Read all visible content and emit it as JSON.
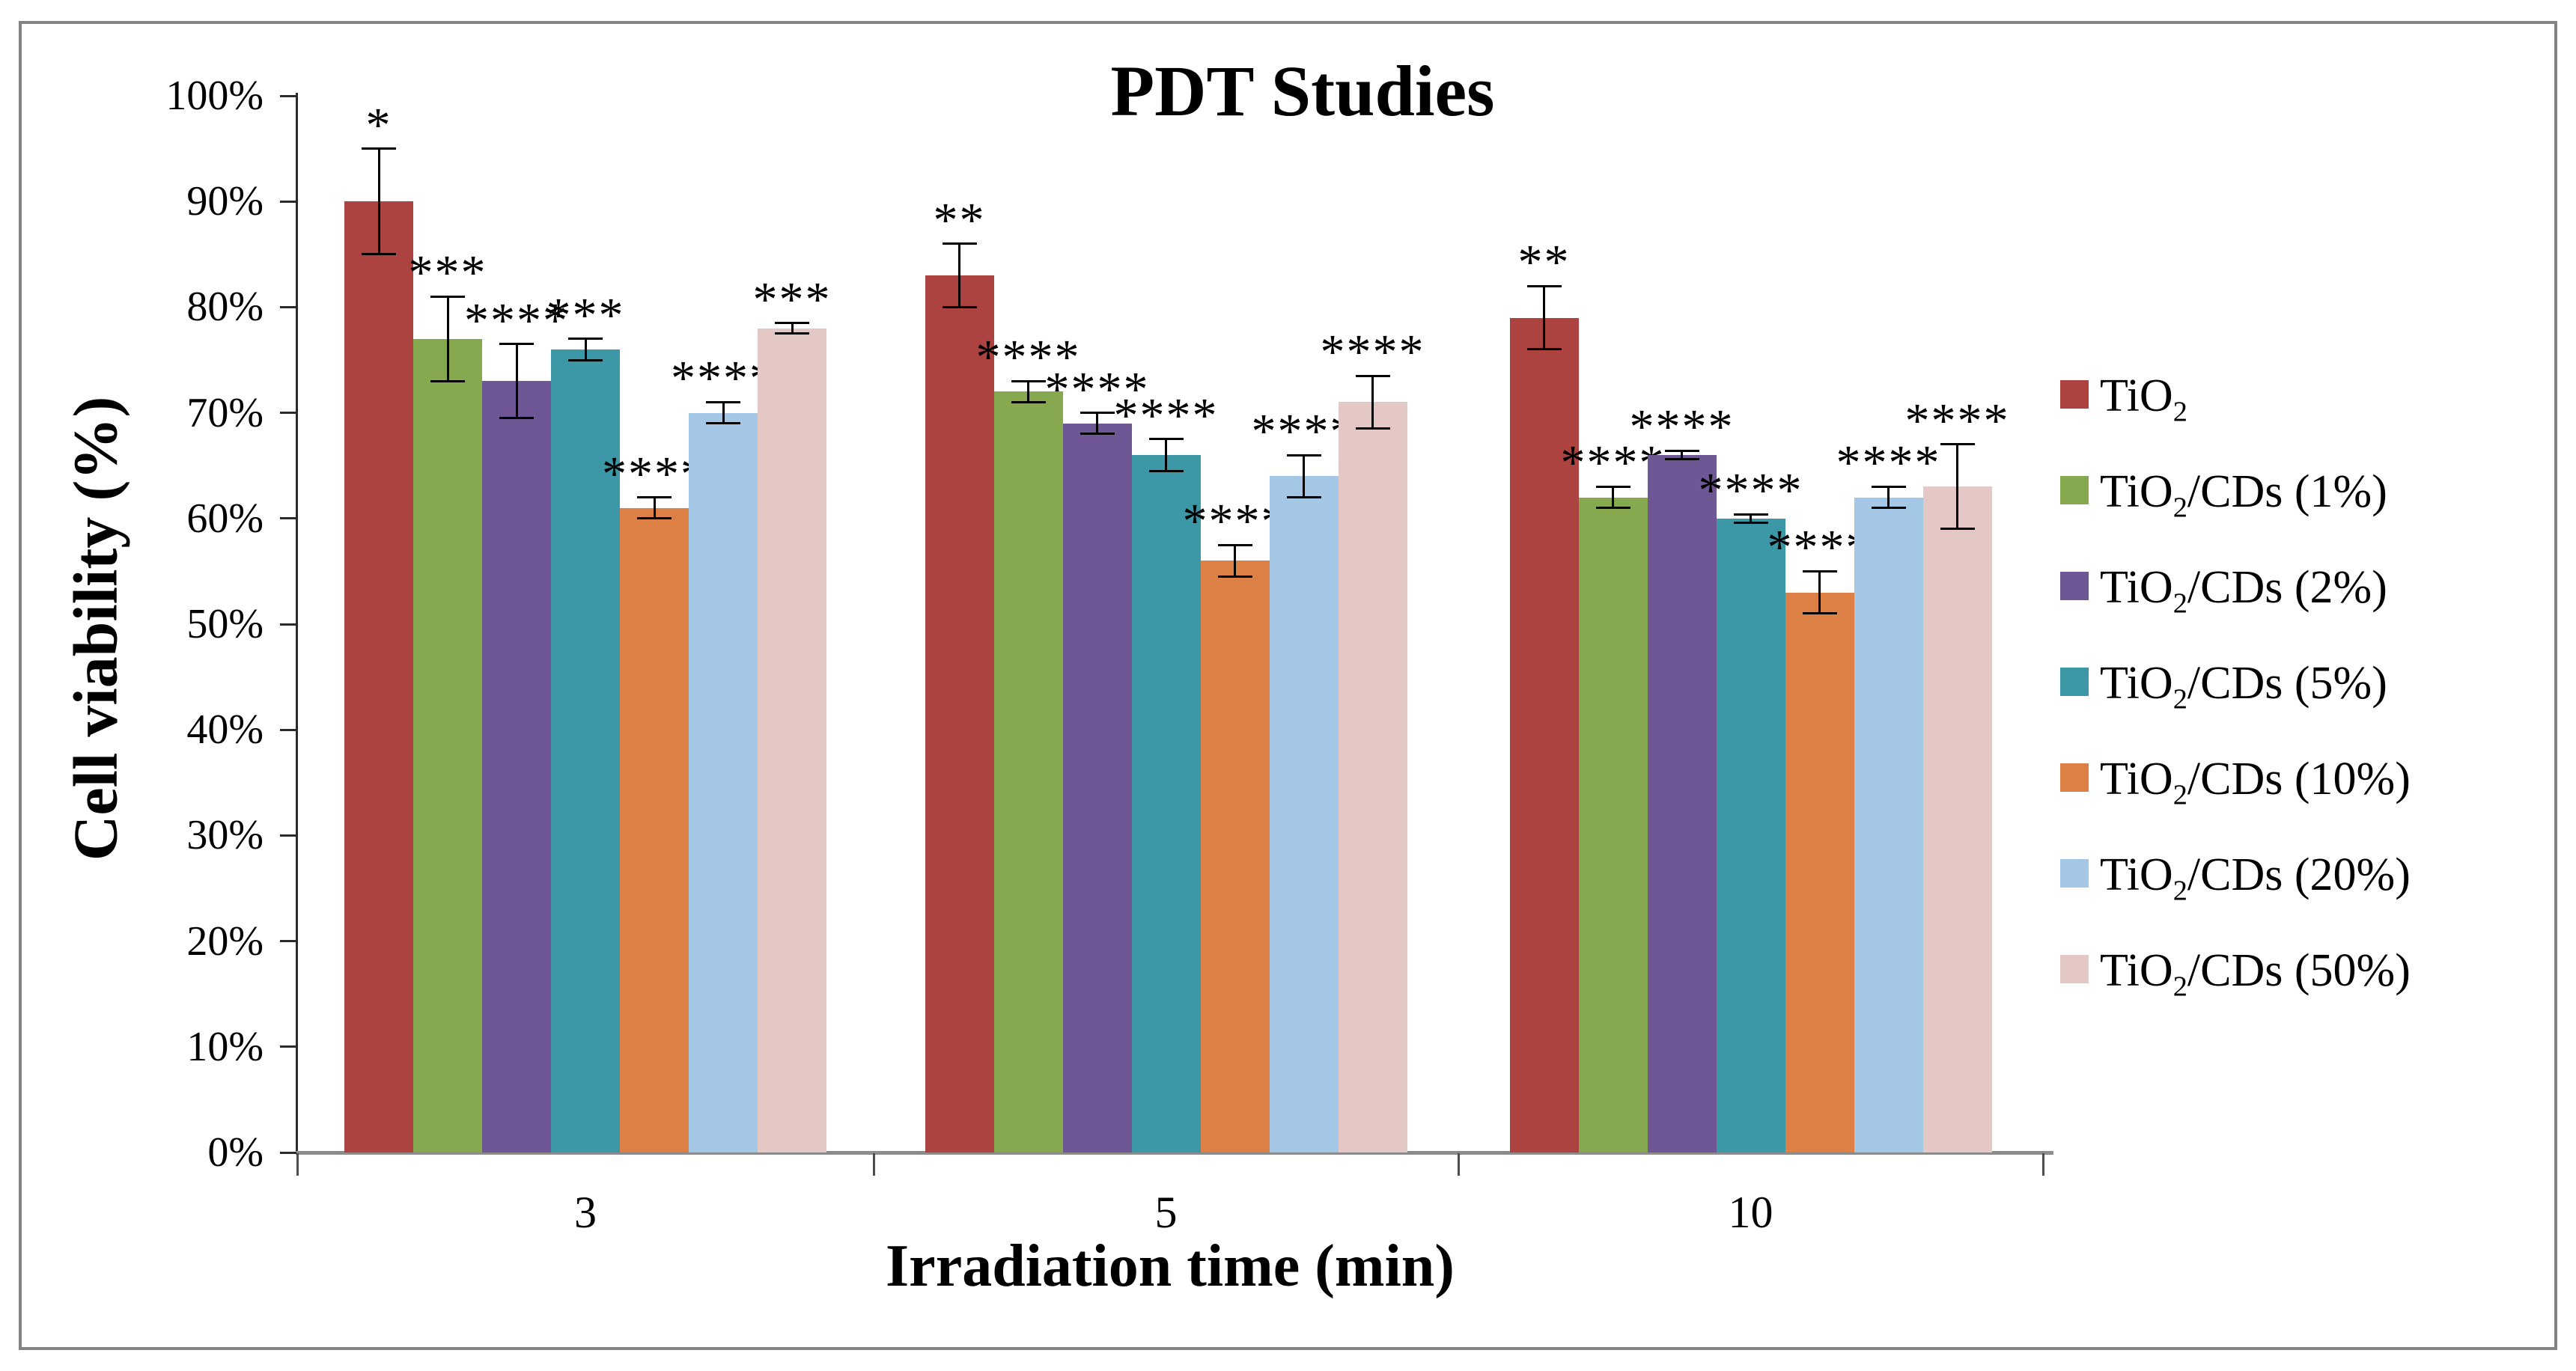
{
  "chart_data": {
    "type": "bar",
    "title": "PDT Studies",
    "xlabel": "Irradiation time (min)",
    "ylabel": "Cell viability (%)",
    "categories": [
      "3",
      "5",
      "10"
    ],
    "y_tick_labels": [
      "100%",
      "90%",
      "80%",
      "70%",
      "60%",
      "50%",
      "40%",
      "30%",
      "20%",
      "10%",
      "0%"
    ],
    "ylim": [
      0,
      100
    ],
    "grid": false,
    "legend_position": "right-middle",
    "error_bars": true,
    "series": [
      {
        "label_pre": "TiO",
        "label_sub": "2",
        "label_post": "",
        "color": "#AD4340",
        "values": [
          90,
          83,
          79
        ],
        "errors": [
          5,
          3,
          3
        ],
        "significance": [
          "*",
          "**",
          "**"
        ]
      },
      {
        "label_pre": "TiO",
        "label_sub": "2",
        "label_post": "/CDs (1%)",
        "color": "#86A94F",
        "values": [
          77,
          72,
          62
        ],
        "errors": [
          4,
          1,
          1
        ],
        "significance": [
          "***",
          "****",
          "****"
        ]
      },
      {
        "label_pre": "TiO",
        "label_sub": "2",
        "label_post": "/CDs (2%)",
        "color": "#6E5794",
        "values": [
          73,
          69,
          66
        ],
        "errors": [
          3.5,
          1,
          0.4
        ],
        "significance": [
          "****",
          "****",
          "****"
        ]
      },
      {
        "label_pre": "TiO",
        "label_sub": "2",
        "label_post": "/CDs (5%)",
        "color": "#3C97A7",
        "values": [
          76,
          66,
          60
        ],
        "errors": [
          1,
          1.5,
          0.4
        ],
        "significance": [
          "***",
          "****",
          "****"
        ]
      },
      {
        "label_pre": "TiO",
        "label_sub": "2",
        "label_post": "/CDs (10%)",
        "color": "#DC8045",
        "values": [
          61,
          56,
          53
        ],
        "errors": [
          1,
          1.5,
          2
        ],
        "significance": [
          "****",
          "****",
          "****"
        ]
      },
      {
        "label_pre": "TiO",
        "label_sub": "2",
        "label_post": "/CDs (20%)",
        "color": "#A4C7E6",
        "values": [
          70,
          64,
          62
        ],
        "errors": [
          1,
          2,
          1
        ],
        "significance": [
          "****",
          "****",
          "****"
        ]
      },
      {
        "label_pre": "TiO",
        "label_sub": "2",
        "label_post": "/CDs (50%)",
        "color": "#E4C8C5",
        "values": [
          78,
          71,
          63
        ],
        "errors": [
          0.5,
          2.5,
          4
        ],
        "significance": [
          "***",
          "****",
          "****"
        ]
      }
    ]
  }
}
